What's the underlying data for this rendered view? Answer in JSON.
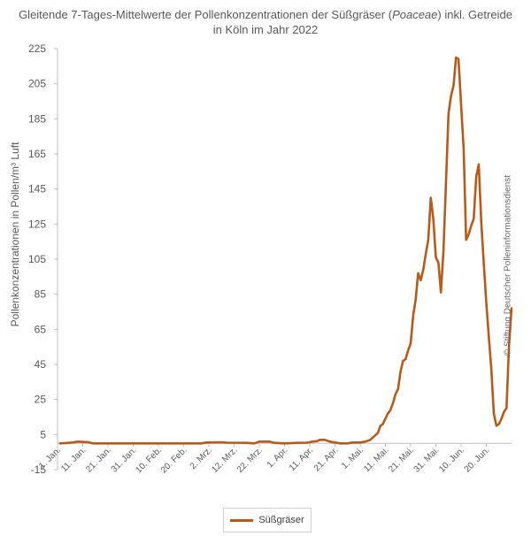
{
  "chart_data": {
    "type": "line",
    "title_pre": "Gleitende 7-Tages-Mittelwerte der Pollenkonzentrationen der Süßgräser (",
    "title_italic": "Poaceae",
    "title_post": ") inkl. Getreide",
    "title_line2": "in Köln im Jahr 2022",
    "ylabel": "Pollenkonzentrationen in Pollen/m³ Luft",
    "xlabel": "",
    "ylim": [
      -15,
      225
    ],
    "yticks": [
      "225",
      "205",
      "185",
      "165",
      "145",
      "125",
      "105",
      "85",
      "65",
      "45",
      "25",
      "5",
      "-15"
    ],
    "xticks": [
      "1. Jan.",
      "11. Jan.",
      "21. Jan.",
      "31. Jan.",
      "10. Feb.",
      "20. Feb.",
      "2. Mrz.",
      "12. Mrz.",
      "22. Mrz.",
      "1. Apr.",
      "11. Apr.",
      "21. Apr.",
      "1. Mai.",
      "11. Mai.",
      "21. Mai.",
      "31. Mai.",
      "10. Jun.",
      "20. Jun."
    ],
    "grid": false,
    "legend_position": "bottom",
    "watermark": "© Stiftung Deutscher Polleninformationsdienst",
    "series": [
      {
        "name": "Süßgräser",
        "color": "#b85a18",
        "points": [
          [
            1,
            0
          ],
          [
            3,
            0.2
          ],
          [
            6,
            0.5
          ],
          [
            8,
            1
          ],
          [
            12,
            0.7
          ],
          [
            14,
            0
          ],
          [
            20,
            0
          ],
          [
            30,
            0
          ],
          [
            40,
            0
          ],
          [
            50,
            0
          ],
          [
            57,
            0
          ],
          [
            59,
            0.5
          ],
          [
            65,
            0.6
          ],
          [
            67,
            0.4
          ],
          [
            75,
            0.3
          ],
          [
            78,
            0
          ],
          [
            80,
            1
          ],
          [
            84,
            1
          ],
          [
            86,
            0.3
          ],
          [
            90,
            0
          ],
          [
            95,
            0.3
          ],
          [
            99,
            0.4
          ],
          [
            101,
            1
          ],
          [
            103,
            1.3
          ],
          [
            104,
            2
          ],
          [
            106,
            2
          ],
          [
            108,
            1
          ],
          [
            112,
            0
          ],
          [
            115,
            0
          ],
          [
            117,
            0.5
          ],
          [
            120,
            0.5
          ],
          [
            122,
            1
          ],
          [
            124,
            2
          ],
          [
            127,
            6
          ],
          [
            128,
            10
          ],
          [
            129,
            11
          ],
          [
            131,
            17
          ],
          [
            132,
            19
          ],
          [
            133,
            23
          ],
          [
            134,
            28
          ],
          [
            135,
            31
          ],
          [
            136,
            41
          ],
          [
            137,
            47
          ],
          [
            138,
            48
          ],
          [
            139,
            53
          ],
          [
            140,
            57
          ],
          [
            141,
            73
          ],
          [
            142,
            82
          ],
          [
            143,
            97
          ],
          [
            144,
            93
          ],
          [
            145,
            99
          ],
          [
            146,
            108
          ],
          [
            147,
            116
          ],
          [
            148,
            140
          ],
          [
            149,
            128
          ],
          [
            150,
            106
          ],
          [
            151,
            103
          ],
          [
            152,
            86
          ],
          [
            153,
            110
          ],
          [
            154,
            148
          ],
          [
            155,
            188
          ],
          [
            156,
            198
          ],
          [
            157,
            204
          ],
          [
            158,
            220
          ],
          [
            159,
            219
          ],
          [
            160,
            193
          ],
          [
            161,
            168
          ],
          [
            162,
            116
          ],
          [
            163,
            119
          ],
          [
            164,
            124
          ],
          [
            165,
            128
          ],
          [
            166,
            152
          ],
          [
            167,
            159
          ],
          [
            168,
            126
          ],
          [
            169,
            103
          ],
          [
            170,
            80
          ],
          [
            171,
            61
          ],
          [
            172,
            42
          ],
          [
            173,
            17
          ],
          [
            174,
            10
          ],
          [
            175,
            11
          ],
          [
            176,
            14
          ],
          [
            177,
            18
          ],
          [
            178,
            20
          ],
          [
            179,
            56
          ],
          [
            180,
            77
          ]
        ]
      }
    ]
  }
}
